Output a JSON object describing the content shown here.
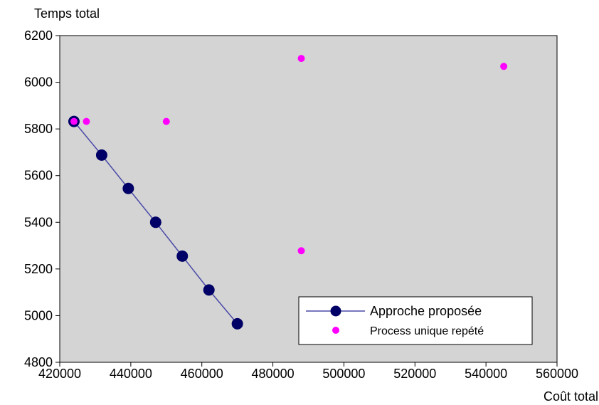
{
  "colors": {
    "plot_background": "#d4d4d4",
    "series1_marker": "#000066",
    "series1_line": "#4a4aa8",
    "series2_marker": "#ff00ff"
  },
  "chart_data": {
    "type": "scatter",
    "title": "",
    "xlabel": "Coût total",
    "ylabel": "Temps total",
    "xlim": [
      420000,
      560000
    ],
    "ylim": [
      4800,
      6200
    ],
    "xticks": [
      420000,
      440000,
      460000,
      480000,
      500000,
      520000,
      540000,
      560000
    ],
    "yticks": [
      4800,
      5000,
      5200,
      5400,
      5600,
      5800,
      6000,
      6200
    ],
    "xtick_labels": [
      "420000",
      "440000",
      "460000",
      "480000",
      "500000",
      "520000",
      "540000",
      "560000"
    ],
    "ytick_labels": [
      "4800",
      "5000",
      "5200",
      "5400",
      "5600",
      "5800",
      "6000",
      "6200"
    ],
    "grid": false,
    "legend_position": "bottom-right",
    "series": [
      {
        "name": "Approche proposée",
        "style": "line-markers",
        "x": [
          424000,
          431800,
          439300,
          447000,
          454500,
          462000,
          470000
        ],
        "y": [
          5832,
          5688,
          5545,
          5400,
          5255,
          5110,
          4965
        ]
      },
      {
        "name": "Process unique repété",
        "style": "markers",
        "x": [
          424000,
          427500,
          450000,
          488000,
          488000,
          545000
        ],
        "y": [
          5832,
          5832,
          5832,
          6102,
          5278,
          6068
        ]
      }
    ]
  }
}
